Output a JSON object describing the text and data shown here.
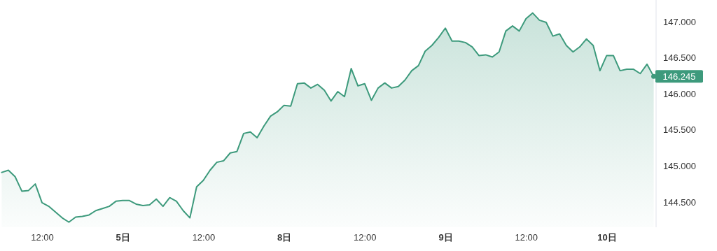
{
  "chart_data": {
    "type": "area",
    "categories": [
      null,
      null,
      null,
      null,
      null,
      null,
      "12:00",
      null,
      null,
      null,
      null,
      null,
      null,
      null,
      null,
      null,
      null,
      null,
      "5日",
      null,
      null,
      null,
      null,
      null,
      null,
      null,
      null,
      null,
      null,
      null,
      "12:00",
      null,
      null,
      null,
      null,
      null,
      null,
      null,
      null,
      null,
      null,
      null,
      "8日",
      null,
      null,
      null,
      null,
      null,
      null,
      null,
      null,
      null,
      null,
      null,
      "12:00",
      null,
      null,
      null,
      null,
      null,
      null,
      null,
      null,
      null,
      null,
      null,
      "9日",
      null,
      null,
      null,
      null,
      null,
      null,
      null,
      null,
      null,
      null,
      null,
      "12:00",
      null,
      null,
      null,
      null,
      null,
      null,
      null,
      null,
      null,
      null,
      null,
      "10日",
      null,
      null,
      null,
      null,
      null,
      null,
      null
    ],
    "series": [
      {
        "color": "#3d9a7c",
        "values": [
          144.91,
          144.94,
          144.85,
          144.65,
          144.66,
          144.75,
          144.49,
          144.44,
          144.36,
          144.28,
          144.22,
          144.29,
          144.3,
          144.32,
          144.38,
          144.41,
          144.44,
          144.51,
          144.52,
          144.52,
          144.47,
          144.45,
          144.46,
          144.54,
          144.44,
          144.56,
          144.51,
          144.38,
          144.28,
          144.71,
          144.8,
          144.94,
          145.05,
          145.07,
          145.18,
          145.2,
          145.45,
          145.47,
          145.39,
          145.55,
          145.69,
          145.75,
          145.84,
          145.83,
          146.14,
          146.15,
          146.08,
          146.13,
          146.05,
          145.9,
          146.03,
          145.96,
          146.35,
          146.11,
          146.14,
          145.91,
          146.08,
          146.15,
          146.08,
          146.1,
          146.19,
          146.32,
          146.39,
          146.59,
          146.67,
          146.78,
          146.91,
          146.73,
          146.73,
          146.71,
          146.65,
          146.53,
          146.54,
          146.51,
          146.58,
          146.87,
          146.94,
          146.87,
          147.04,
          147.12,
          147.02,
          146.99,
          146.8,
          146.83,
          146.67,
          146.58,
          146.65,
          146.76,
          146.67,
          146.32,
          146.53,
          146.53,
          146.32,
          146.34,
          146.34,
          146.28,
          146.41,
          146.24
        ]
      }
    ],
    "ylim": [
      144.15,
      147.3
    ],
    "yticks": [
      {
        "value": 144.5,
        "label": "144.500"
      },
      {
        "value": 145,
        "label": "145.000"
      },
      {
        "value": 145.5,
        "label": "145.500"
      },
      {
        "value": 146,
        "label": "146.000"
      },
      {
        "value": 146.5,
        "label": "146.500"
      },
      {
        "value": 147,
        "label": "147.000"
      }
    ],
    "annotations": [
      "146.245"
    ],
    "grid": false,
    "marker": "none",
    "line_style": "solid"
  }
}
